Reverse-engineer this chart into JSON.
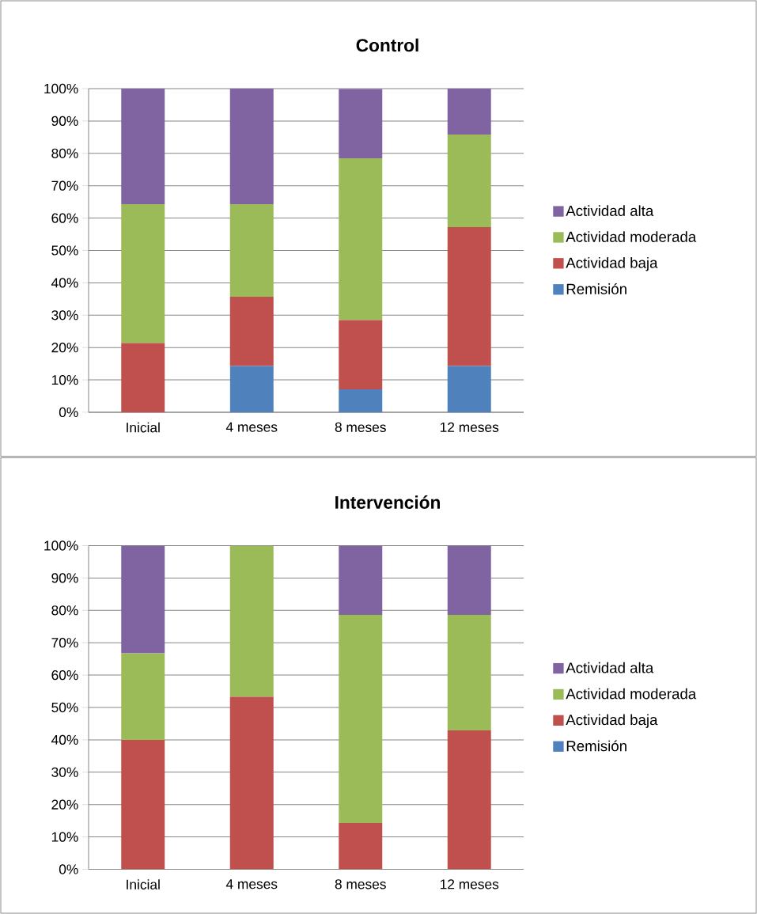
{
  "chart_data": [
    {
      "type": "bar",
      "stacked": true,
      "title": "Control",
      "categories": [
        "Inicial",
        "4 meses",
        "8 meses",
        "12 meses"
      ],
      "series": [
        {
          "name": "Remisión",
          "color": "#4f81bd",
          "values": [
            0,
            14.3,
            7.1,
            14.3
          ]
        },
        {
          "name": "Actividad baja",
          "color": "#c0504d",
          "values": [
            21.4,
            21.4,
            21.4,
            42.9
          ]
        },
        {
          "name": "Actividad moderada",
          "color": "#9bbb59",
          "values": [
            42.9,
            28.6,
            50,
            28.6
          ]
        },
        {
          "name": "Actividad alta",
          "color": "#8064a2",
          "values": [
            35.7,
            35.7,
            21.4,
            14.3
          ]
        }
      ],
      "ylim": [
        0,
        100
      ],
      "yticks": [
        {
          "value": 0,
          "label": "0%"
        },
        {
          "value": 10,
          "label": "10%"
        },
        {
          "value": 20,
          "label": "20%"
        },
        {
          "value": 30,
          "label": "30%"
        },
        {
          "value": 40,
          "label": "40%"
        },
        {
          "value": 50,
          "label": "50%"
        },
        {
          "value": 60,
          "label": "60%"
        },
        {
          "value": 70,
          "label": "70%"
        },
        {
          "value": 80,
          "label": "80%"
        },
        {
          "value": 90,
          "label": "90%"
        },
        {
          "value": 100,
          "label": "100%"
        }
      ],
      "grid": "y",
      "legend": "right"
    },
    {
      "type": "bar",
      "stacked": true,
      "title": "Intervención",
      "categories": [
        "Inicial",
        "4 meses",
        "8 meses",
        "12 meses"
      ],
      "series": [
        {
          "name": "Remisión",
          "color": "#4f81bd",
          "values": [
            0,
            0,
            0,
            0
          ]
        },
        {
          "name": "Actividad baja",
          "color": "#c0504d",
          "values": [
            40,
            53.3,
            14.3,
            42.9
          ]
        },
        {
          "name": "Actividad moderada",
          "color": "#9bbb59",
          "values": [
            26.7,
            46.7,
            64.3,
            35.7
          ]
        },
        {
          "name": "Actividad alta",
          "color": "#8064a2",
          "values": [
            33.3,
            0,
            21.4,
            21.4
          ]
        }
      ],
      "ylim": [
        0,
        100
      ],
      "yticks": [
        {
          "value": 0,
          "label": "0%"
        },
        {
          "value": 10,
          "label": "10%"
        },
        {
          "value": 20,
          "label": "20%"
        },
        {
          "value": 30,
          "label": "30%"
        },
        {
          "value": 40,
          "label": "40%"
        },
        {
          "value": 50,
          "label": "50%"
        },
        {
          "value": 60,
          "label": "60%"
        },
        {
          "value": 70,
          "label": "70%"
        },
        {
          "value": 80,
          "label": "80%"
        },
        {
          "value": 90,
          "label": "90%"
        },
        {
          "value": 100,
          "label": "100%"
        }
      ],
      "grid": "y",
      "legend": "right"
    }
  ]
}
